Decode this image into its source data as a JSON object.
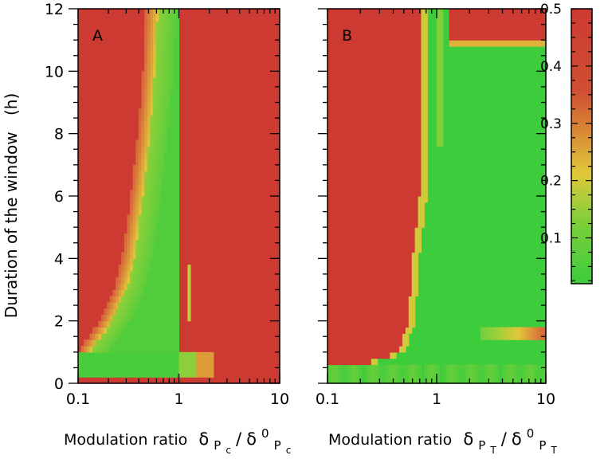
{
  "chart_data": [
    {
      "type": "heatmap",
      "panel_label": "A",
      "xlabel": "Modulation ratio",
      "xlabel_math": {
        "base": "δ",
        "sub": "P",
        "subsub": "c",
        "divider": "/",
        "base2": "δ",
        "sup2": "0",
        "sub2": "P",
        "subsub2": "c"
      },
      "ylabel": "Duration of the window",
      "ylabel_unit": "(h)",
      "xscale": "log",
      "xlim": [
        0.1,
        10
      ],
      "ylim": [
        0,
        12
      ],
      "x_ticklabels": [
        "0.1",
        "1",
        "10"
      ],
      "y_ticklabels": [
        "0",
        "2",
        "4",
        "6",
        "8",
        "10",
        "12"
      ],
      "value_range": [
        0,
        0.5
      ],
      "description_regions": {
        "green_band_left_edge_x": [
          {
            "y": 0.2,
            "x": 0.1
          },
          {
            "y": 0.6,
            "x": 0.1
          },
          {
            "y": 1.0,
            "x": 0.13
          },
          {
            "y": 2.0,
            "x": 0.22
          },
          {
            "y": 3.0,
            "x": 0.3
          },
          {
            "y": 4.0,
            "x": 0.36
          },
          {
            "y": 6.0,
            "x": 0.44
          },
          {
            "y": 8.0,
            "x": 0.52
          },
          {
            "y": 10.0,
            "x": 0.58
          },
          {
            "y": 12.0,
            "x": 0.62
          }
        ],
        "green_band_right_edge_x": 1.0,
        "low_window_green_ymax": 1.0,
        "vertical_stripe": {
          "x": 1.25,
          "ymin": 2.0,
          "ymax": 3.9
        }
      }
    },
    {
      "type": "heatmap",
      "panel_label": "B",
      "xlabel": "Modulation ratio",
      "xlabel_math": {
        "base": "δ",
        "sub": "P",
        "subsub": "T",
        "divider": "/",
        "base2": "δ",
        "sup2": "0",
        "sub2": "P",
        "subsub2": "T"
      },
      "xscale": "log",
      "xlim": [
        0.1,
        10
      ],
      "ylim": [
        0,
        12
      ],
      "x_ticklabels": [
        "0.1",
        "1",
        "10"
      ],
      "value_range": [
        0,
        0.5
      ],
      "description_regions": {
        "red_region_left_x_max": [
          {
            "y": 0.6,
            "x": 0.2
          },
          {
            "y": 1.0,
            "x": 0.45
          },
          {
            "y": 2.0,
            "x": 0.55
          },
          {
            "y": 4.0,
            "x": 0.6
          },
          {
            "y": 6.0,
            "x": 0.7
          },
          {
            "y": 7.5,
            "x": 0.72
          },
          {
            "y": 12.0,
            "x": 0.72
          }
        ],
        "top_right_red_ymin": 11.0,
        "top_right_red_xmin": 1.3,
        "orange_band_y": [
          1.3,
          1.9
        ]
      }
    }
  ],
  "colorbar": {
    "ticklabels": [
      "0.1",
      "0.2",
      "0.3",
      "0.4",
      "0.5"
    ],
    "ticks": [
      0.1,
      0.2,
      0.3,
      0.4,
      0.5
    ],
    "range": [
      0.02,
      0.5
    ],
    "colors": {
      "low": "#3ccc3c",
      "mid": "#e0c83a",
      "high": "#cd3a32"
    }
  }
}
